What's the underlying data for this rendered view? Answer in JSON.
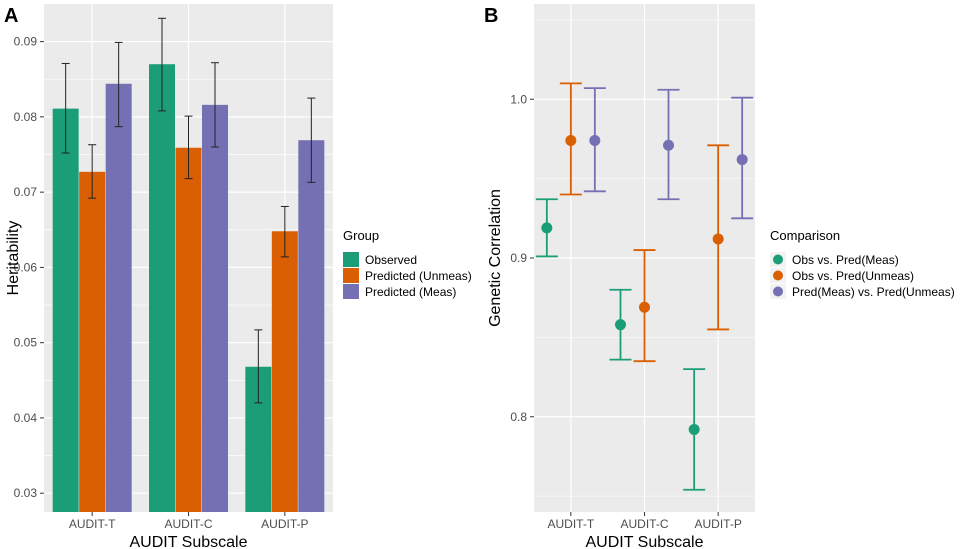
{
  "chart_data": [
    {
      "type": "bar",
      "panel_label": "A",
      "xlabel": "AUDIT Subscale",
      "ylabel": "Heritability",
      "categories": [
        "AUDIT-T",
        "AUDIT-C",
        "AUDIT-P"
      ],
      "ylim": [
        0.0275,
        0.095
      ],
      "yticks": [
        "0.03",
        "0.04",
        "0.05",
        "0.06",
        "0.07",
        "0.08",
        "0.09"
      ],
      "ytick_values": [
        0.03,
        0.04,
        0.05,
        0.06,
        0.07,
        0.08,
        0.09
      ],
      "legend_title": "Group",
      "legend_position": "right",
      "series": [
        {
          "name": "Observed",
          "color": "#1B9E77",
          "values": [
            0.0811,
            0.087,
            0.0468
          ],
          "err_low": [
            0.0752,
            0.0808,
            0.042
          ],
          "err_high": [
            0.0871,
            0.0931,
            0.0517
          ]
        },
        {
          "name": "Predicted (Unmeas)",
          "color": "#D95F02",
          "values": [
            0.0727,
            0.0759,
            0.0648
          ],
          "err_low": [
            0.0692,
            0.0718,
            0.0614
          ],
          "err_high": [
            0.0763,
            0.0801,
            0.0681
          ]
        },
        {
          "name": "Predicted (Meas)",
          "color": "#7570B3",
          "values": [
            0.0844,
            0.0816,
            0.0769
          ],
          "err_low": [
            0.0787,
            0.076,
            0.0713
          ],
          "err_high": [
            0.0899,
            0.0872,
            0.0825
          ]
        }
      ]
    },
    {
      "type": "scatter",
      "panel_label": "B",
      "xlabel": "AUDIT Subscale",
      "ylabel": "Genetic Correlation",
      "categories": [
        "AUDIT-T",
        "AUDIT-C",
        "AUDIT-P"
      ],
      "ylim": [
        0.74,
        1.06
      ],
      "yticks": [
        "0.8",
        "0.9",
        "1.0"
      ],
      "ytick_values": [
        0.8,
        0.9,
        1.0
      ],
      "legend_title": "Comparison",
      "legend_position": "right",
      "series": [
        {
          "name": "Obs vs. Pred(Meas)",
          "color": "#1B9E77",
          "values": [
            0.919,
            0.858,
            0.792
          ],
          "err_low": [
            0.901,
            0.836,
            0.754
          ],
          "err_high": [
            0.937,
            0.88,
            0.83
          ]
        },
        {
          "name": "Obs vs. Pred(Unmeas)",
          "color": "#D95F02",
          "values": [
            0.974,
            0.869,
            0.912
          ],
          "err_low": [
            0.94,
            0.835,
            0.855
          ],
          "err_high": [
            1.01,
            0.905,
            0.971
          ]
        },
        {
          "name": "Pred(Meas) vs. Pred(Unmeas)",
          "color": "#7570B3",
          "values": [
            0.974,
            0.971,
            0.962
          ],
          "err_low": [
            0.942,
            0.937,
            0.925
          ],
          "err_high": [
            1.007,
            1.006,
            1.001
          ]
        }
      ]
    }
  ]
}
